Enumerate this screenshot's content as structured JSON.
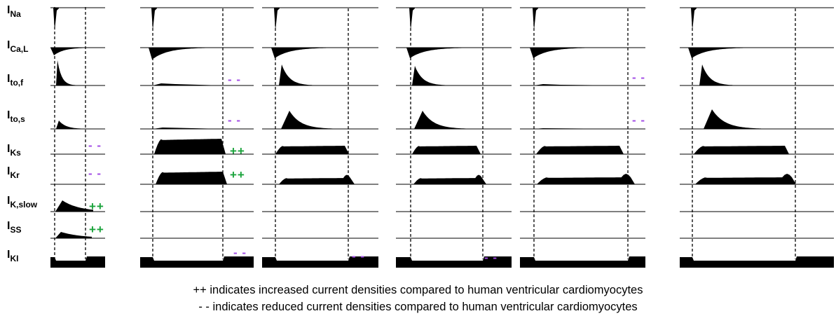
{
  "colors": {
    "trace": "#000000",
    "increased": "#1aa33b",
    "reduced": "#a24de6"
  },
  "currents": [
    {
      "main": "I",
      "sub": "Na"
    },
    {
      "main": "I",
      "sub": "Ca,L"
    },
    {
      "main": "I",
      "sub": "to,f"
    },
    {
      "main": "I",
      "sub": "to,s"
    },
    {
      "main": "I",
      "sub": "Ks"
    },
    {
      "main": "I",
      "sub": "Kr"
    },
    {
      "main": "I",
      "sub": "K,slow"
    },
    {
      "main": "I",
      "sub": "SS"
    },
    {
      "main": "I",
      "sub": "KI"
    }
  ],
  "markers": {
    "increased": "++",
    "reduced": "- -"
  },
  "legend": {
    "increased_text": "++ indicates increased current densities compared to human ventricular cardiomyocytes",
    "reduced_text": "- - indicates reduced current densities compared to human ventricular cardiomyocytes"
  },
  "columns": [
    {
      "increased": [
        "K,slow",
        "SS"
      ],
      "reduced": [
        "Ks",
        "Kr"
      ]
    },
    {
      "increased": [
        "Ks",
        "Kr"
      ],
      "reduced": [
        "to,f",
        "to,s",
        "KI"
      ]
    },
    {
      "increased": [],
      "reduced": [
        "KI"
      ]
    },
    {
      "increased": [],
      "reduced": [
        "KI"
      ]
    },
    {
      "increased": [],
      "reduced": [
        "to,f",
        "to,s"
      ]
    },
    {
      "increased": [],
      "reduced": []
    }
  ]
}
